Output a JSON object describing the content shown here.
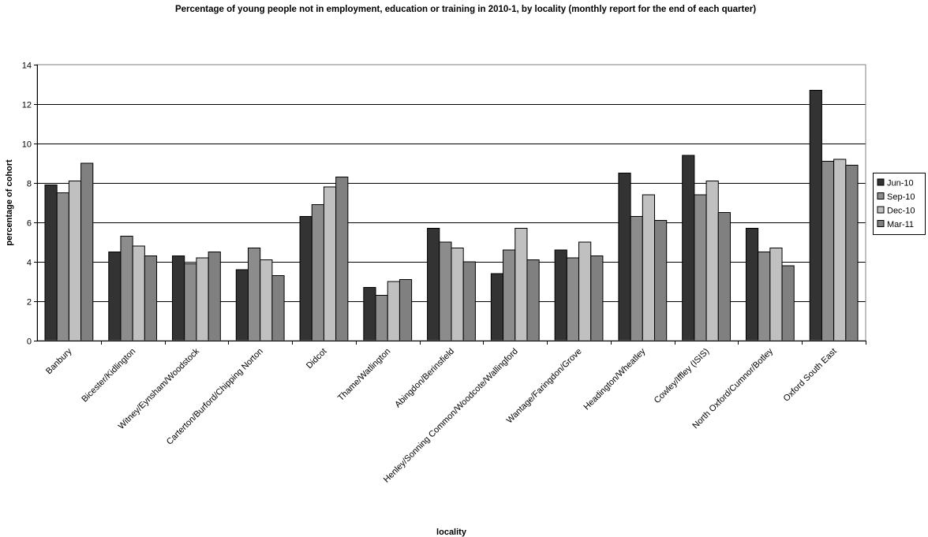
{
  "chart_data": {
    "type": "bar",
    "title": "Percentage of young people not in employment, education or training in 2010-1, by locality (monthly report for the end of each quarter)",
    "xlabel": "locality",
    "ylabel": "percentage of cohort",
    "ylim": [
      0,
      14
    ],
    "yticks": [
      "0",
      "2",
      "4",
      "6",
      "8",
      "10",
      "12",
      "14"
    ],
    "grid": true,
    "legend_position": "right",
    "categories": [
      "Banbury",
      "Bicester/Kidlington",
      "Witney/Eynsham/Woodstock",
      "Carterton/Burford/Chipping Norton",
      "Didcot",
      "Thame/Watlington",
      "Abingdon/Berinsfield",
      "Henley/Sonning Common/Woodcote/Wallingford",
      "Wantage/Faringdon/Grove",
      "Headington/Wheatley",
      "Cowley/Iffley (ISIS)",
      "North Oxford/Cumnor/Botley",
      "Oxford South East"
    ],
    "series": [
      {
        "name": "Jun-10",
        "color": "#333333",
        "values": [
          7.9,
          4.5,
          4.3,
          3.6,
          6.3,
          2.7,
          5.7,
          3.4,
          4.6,
          8.5,
          9.4,
          5.7,
          12.7
        ]
      },
      {
        "name": "Sep-10",
        "color": "#8c8c8c",
        "values": [
          7.5,
          5.3,
          3.9,
          4.7,
          6.9,
          2.3,
          5.0,
          4.6,
          4.2,
          6.3,
          7.4,
          4.5,
          9.1
        ]
      },
      {
        "name": "Dec-10",
        "color": "#c0c0c0",
        "values": [
          8.1,
          4.8,
          4.2,
          4.1,
          7.8,
          3.0,
          4.7,
          5.7,
          5.0,
          7.4,
          8.1,
          4.7,
          9.2
        ]
      },
      {
        "name": "Mar-11",
        "color": "#808080",
        "values": [
          9.0,
          4.3,
          4.5,
          3.3,
          8.3,
          3.1,
          4.0,
          4.1,
          4.3,
          6.1,
          6.5,
          3.8,
          8.9
        ]
      }
    ]
  }
}
